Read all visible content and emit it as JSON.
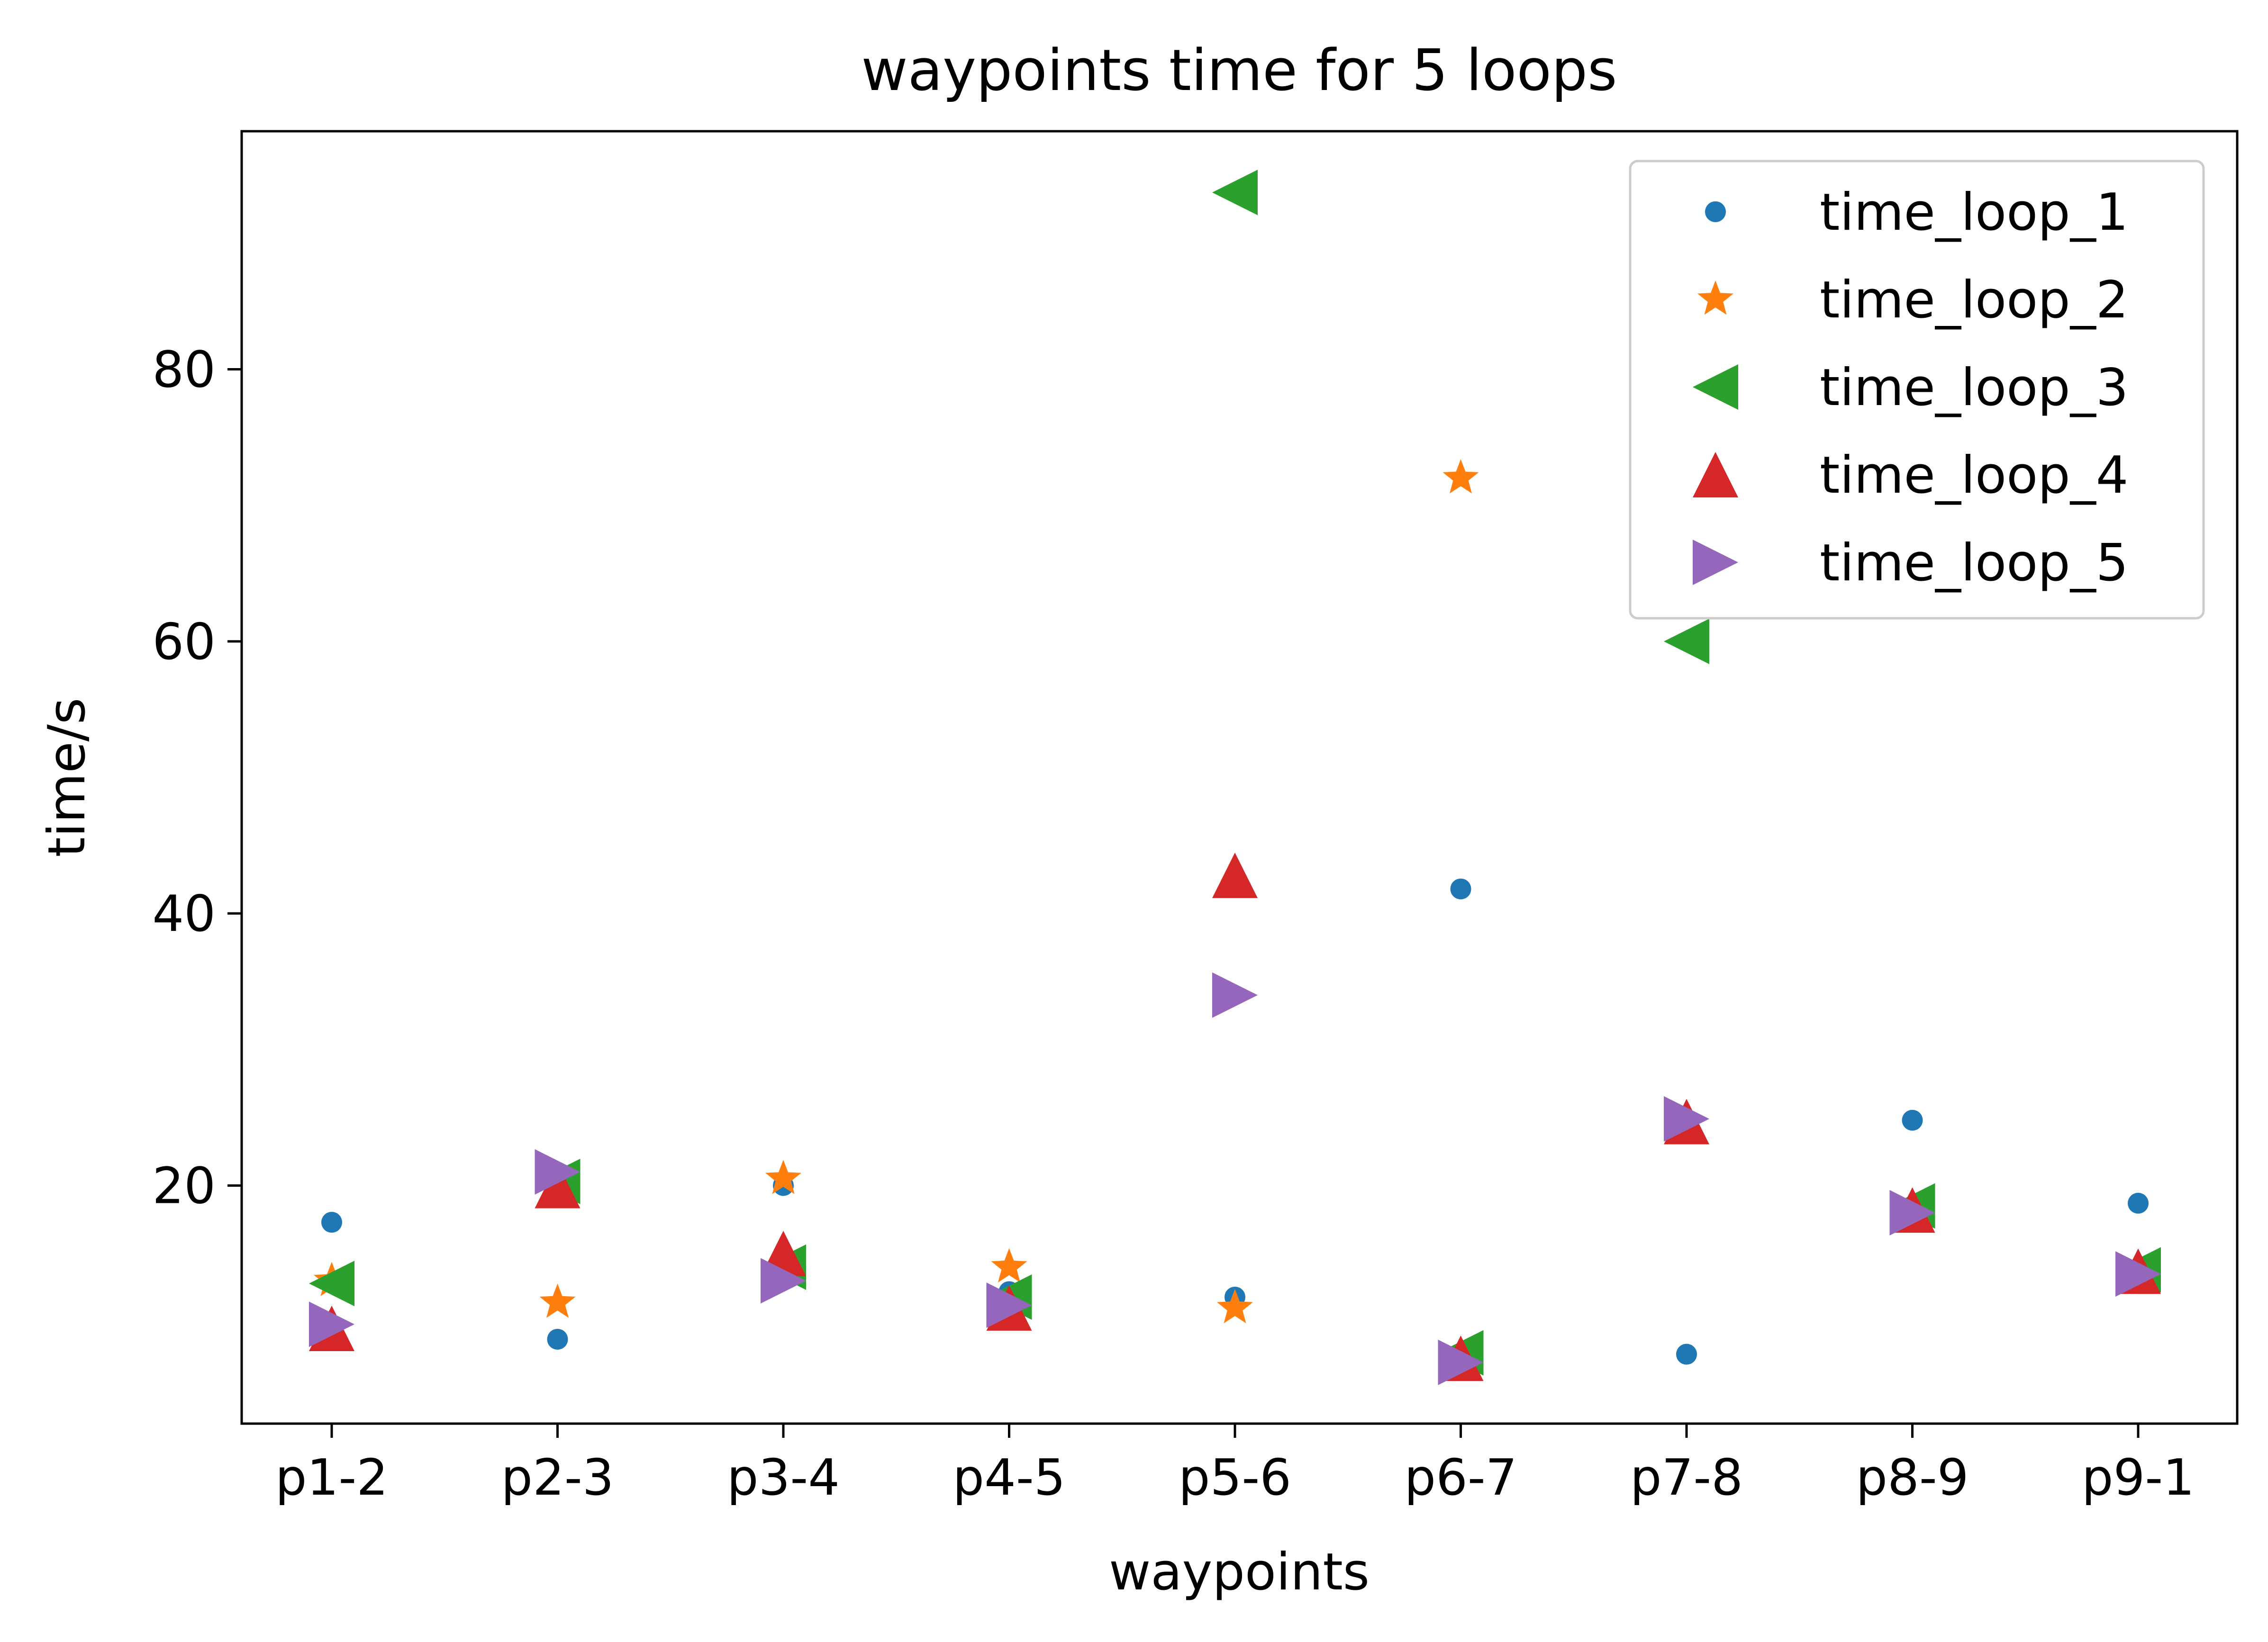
{
  "chart_data": {
    "type": "scatter",
    "title": "waypoints time for 5 loops",
    "xlabel": "waypoints",
    "ylabel": "time/s",
    "categories": [
      "p1-2",
      "p2-3",
      "p3-4",
      "p4-5",
      "p5-6",
      "p6-7",
      "p7-8",
      "p8-9",
      "p9-1"
    ],
    "yticks": [
      20,
      40,
      60,
      80
    ],
    "ylim": [
      2.5,
      97.5
    ],
    "grid": false,
    "legend_position": "top-right",
    "series": [
      {
        "name": "time_loop_1",
        "marker": "circle",
        "color": "#1f77b4",
        "values": [
          17.3,
          8.7,
          20.0,
          12.2,
          11.8,
          41.8,
          7.6,
          24.8,
          18.7
        ]
      },
      {
        "name": "time_loop_2",
        "marker": "star",
        "color": "#ff7f0e",
        "values": [
          13.0,
          11.4,
          20.5,
          14.0,
          11.0,
          72.0,
          24.5,
          18.0,
          13.5
        ]
      },
      {
        "name": "time_loop_3",
        "marker": "triangle-left",
        "color": "#2ca02c",
        "values": [
          12.8,
          20.3,
          14.0,
          11.8,
          93.0,
          7.7,
          60.0,
          18.5,
          13.8
        ]
      },
      {
        "name": "time_loop_4",
        "marker": "triangle-up",
        "color": "#d62728",
        "values": [
          9.5,
          20.0,
          15.0,
          11.0,
          42.8,
          7.3,
          24.7,
          18.2,
          13.7
        ]
      },
      {
        "name": "time_loop_5",
        "marker": "triangle-right",
        "color": "#9467bd",
        "values": [
          9.8,
          21.0,
          13.0,
          11.2,
          34.0,
          7.0,
          24.9,
          18.0,
          13.5
        ]
      }
    ]
  }
}
